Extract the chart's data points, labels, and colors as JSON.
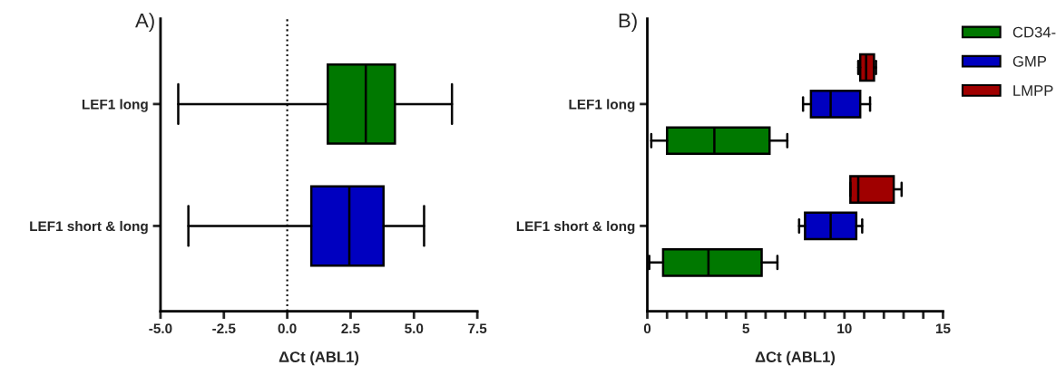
{
  "chart_data": [
    {
      "type": "box",
      "title": "A)",
      "xlabel": "ΔCt (ABL1)",
      "orientation": "horizontal",
      "categories": [
        "LEF1 long",
        "LEF1 short & long"
      ],
      "colors": [
        "#007800",
        "#0000c0"
      ],
      "boxes": [
        {
          "low": -4.3,
          "q1": 1.6,
          "median": 3.1,
          "q3": 4.25,
          "high": 6.5
        },
        {
          "low": -3.9,
          "q1": 0.95,
          "median": 2.45,
          "q3": 3.8,
          "high": 5.4
        }
      ],
      "xlim": [
        -5,
        7.5
      ],
      "xticks": [
        {
          "value": -5,
          "label": "-5.0"
        },
        {
          "value": -2.5,
          "label": "-2.5"
        },
        {
          "value": 0,
          "label": "0.0"
        },
        {
          "value": 2.5,
          "label": "2.5"
        },
        {
          "value": 5,
          "label": "5.0"
        },
        {
          "value": 7.5,
          "label": "7.5"
        }
      ],
      "ref_lines": [
        {
          "axis": "x",
          "value": 0,
          "line_style": "dotted",
          "color": "#000000"
        }
      ],
      "grid": false,
      "legend": false
    },
    {
      "type": "box",
      "title": "B)",
      "xlabel": "ΔCt (ABL1)",
      "orientation": "horizontal",
      "categories": [
        "LEF1 long",
        "LEF1 short & long"
      ],
      "series": [
        {
          "name": "CD34-",
          "color": "#007800",
          "boxes": [
            {
              "low": 0.2,
              "q1": 1.0,
              "median": 3.4,
              "q3": 6.2,
              "high": 7.1
            },
            {
              "low": 0.1,
              "q1": 0.8,
              "median": 3.1,
              "q3": 5.8,
              "high": 6.6
            }
          ]
        },
        {
          "name": "GMP",
          "color": "#0000c0",
          "boxes": [
            {
              "low": 7.9,
              "q1": 8.3,
              "median": 9.3,
              "q3": 10.8,
              "high": 11.3
            },
            {
              "low": 7.7,
              "q1": 8.0,
              "median": 9.3,
              "q3": 10.6,
              "high": 10.9
            }
          ]
        },
        {
          "name": "LMPP",
          "color": "#a00000",
          "boxes": [
            {
              "low": 10.7,
              "q1": 10.8,
              "median": 11.1,
              "q3": 11.5,
              "high": 11.6
            },
            {
              "low": 10.3,
              "q1": 10.3,
              "median": 10.7,
              "q3": 12.5,
              "high": 12.9
            }
          ]
        }
      ],
      "xlim": [
        0,
        15
      ],
      "xticks": [
        0,
        {
          "value": 1,
          "label": null
        },
        {
          "value": 2,
          "label": null
        },
        {
          "value": 3,
          "label": null
        },
        {
          "value": 4,
          "label": null
        },
        5,
        {
          "value": 6,
          "label": null
        },
        {
          "value": 7,
          "label": null
        },
        {
          "value": 8,
          "label": null
        },
        {
          "value": 9,
          "label": null
        },
        10,
        {
          "value": 11,
          "label": null
        },
        {
          "value": 12,
          "label": null
        },
        {
          "value": 13,
          "label": null
        },
        {
          "value": 14,
          "label": null
        },
        15
      ],
      "grid": false,
      "legend": "top right"
    }
  ]
}
